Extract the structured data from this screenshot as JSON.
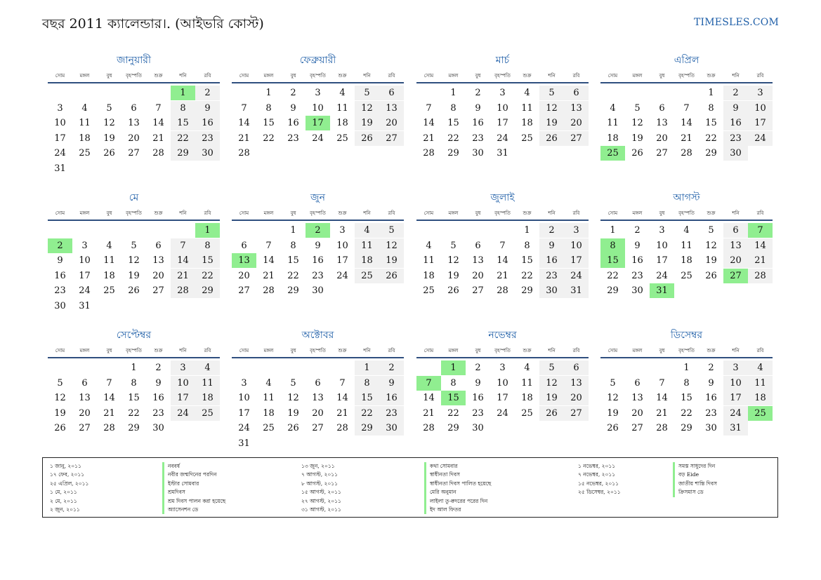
{
  "header": {
    "title": "বছর 2011 ক্যালেন্ডার।. (আইভরি কোস্ট)",
    "brand": "TIMESLES.COM"
  },
  "weekday_labels": [
    "সোম",
    "মঙ্গল",
    "বুধ",
    "বৃহস্পতি",
    "শুক্র",
    "শনি",
    "রবি"
  ],
  "months": [
    {
      "name": "জানুয়ারী",
      "offset": 5,
      "days": 31,
      "highlights": [
        1
      ]
    },
    {
      "name": "ফেব্রুয়ারী",
      "offset": 1,
      "days": 28,
      "highlights": [
        17
      ]
    },
    {
      "name": "মার্চ",
      "offset": 1,
      "days": 31,
      "highlights": []
    },
    {
      "name": "এপ্রিল",
      "offset": 4,
      "days": 30,
      "highlights": [
        25
      ]
    },
    {
      "name": "মে",
      "offset": 6,
      "days": 31,
      "highlights": [
        1,
        2
      ]
    },
    {
      "name": "জুন",
      "offset": 2,
      "days": 30,
      "highlights": [
        2,
        13
      ]
    },
    {
      "name": "জুলাই",
      "offset": 4,
      "days": 31,
      "highlights": []
    },
    {
      "name": "আগস্ট",
      "offset": 0,
      "days": 31,
      "highlights": [
        7,
        8,
        15,
        27,
        31
      ]
    },
    {
      "name": "সেপ্টেম্বর",
      "offset": 3,
      "days": 30,
      "highlights": []
    },
    {
      "name": "অক্টোবর",
      "offset": 5,
      "days": 31,
      "highlights": []
    },
    {
      "name": "নভেম্বর",
      "offset": 1,
      "days": 30,
      "highlights": [
        1,
        7,
        15
      ]
    },
    {
      "name": "ডিসেম্বর",
      "offset": 3,
      "days": 31,
      "highlights": [
        25
      ]
    }
  ],
  "legend": [
    {
      "date": "১ জানু, ২০১১",
      "name": "নববর্ষ"
    },
    {
      "date": "১৭ ফেব, ২০১১",
      "name": "নবীর জন্মদিনের পরদিন"
    },
    {
      "date": "২৫ এপ্রিল, ২০১১",
      "name": "ইস্টার সোমবার"
    },
    {
      "date": "১ মে, ২০১১",
      "name": "শ্রমদিবস"
    },
    {
      "date": "২ মে, ২০১১",
      "name": "শ্রম দিবস পালন করা হয়েছে"
    },
    {
      "date": "২ জুন, ২০১১",
      "name": "অ্যাসেনশন ডে"
    },
    {
      "date": "১৩ জুন, ২০১১",
      "name": "কথা সোমবার"
    },
    {
      "date": "৭ আগস্ট, ২০১১",
      "name": "স্বাধীনতা দিবস"
    },
    {
      "date": "৮ আগস্ট, ২০১১",
      "name": "স্বাধীনতা দিবস পালিত হয়েছে"
    },
    {
      "date": "১৫ আগস্ট, ২০১১",
      "name": "মেরি অনুমান"
    },
    {
      "date": "২৭ আগস্ট, ২০১১",
      "name": "লাইলা তু-ক্বদরের পরের দিন"
    },
    {
      "date": "৩১ আগস্ট, ২০১১",
      "name": "ইদ আল ফিতর"
    },
    {
      "date": "১ নভেম্বর, ২০১১",
      "name": "সমস্ত সাধুদের দিন"
    },
    {
      "date": "৭ নভেম্বর, ২০১১",
      "name": "বড় Eide"
    },
    {
      "date": "১৫ নভেম্বর, ২০১১",
      "name": "জাতীয় শান্তি দিবস"
    },
    {
      "date": "২৫ ডিসেম্বর, ২০১১",
      "name": "ক্রিসমাস ডে"
    }
  ],
  "colors": {
    "accent": "#1f5fa8",
    "highlight": "#90ee90",
    "weekend": "#f1f1f1",
    "rule": "#2f4f7f"
  }
}
